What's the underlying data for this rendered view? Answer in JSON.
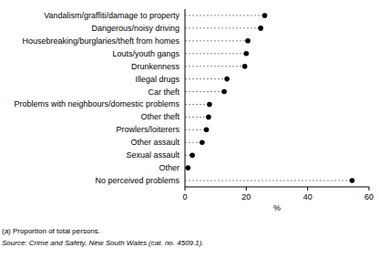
{
  "chart_data": {
    "type": "dot",
    "orientation": "horizontal",
    "categories": [
      "Vandalism/graffiti/damage to property",
      "Dangerous/noisy driving",
      "Housebreaking/burglaries/theft from homes",
      "Louts/youth gangs",
      "Drunkenness",
      "Illegal drugs",
      "Car theft",
      "Problems with neighbours/domestic problems",
      "Other theft",
      "Prowlers/loiterers",
      "Other assault",
      "Sexual assault",
      "Other",
      "No perceived problems"
    ],
    "values": [
      26,
      24.7,
      20.5,
      20,
      19.5,
      13.7,
      12.8,
      8,
      7.7,
      7,
      5.6,
      2.4,
      1,
      54.5
    ],
    "color": "#000000",
    "marker": "circle",
    "line_style": "dashed",
    "x_label": "%",
    "xlim": [
      0,
      60
    ],
    "xticks": [
      0,
      20,
      40,
      60
    ],
    "grid": false,
    "annotations": [
      "(a) Proportion of total persons.",
      "Source: Crime and Safety, New South Wales (cat. no. 4509.1)."
    ]
  }
}
